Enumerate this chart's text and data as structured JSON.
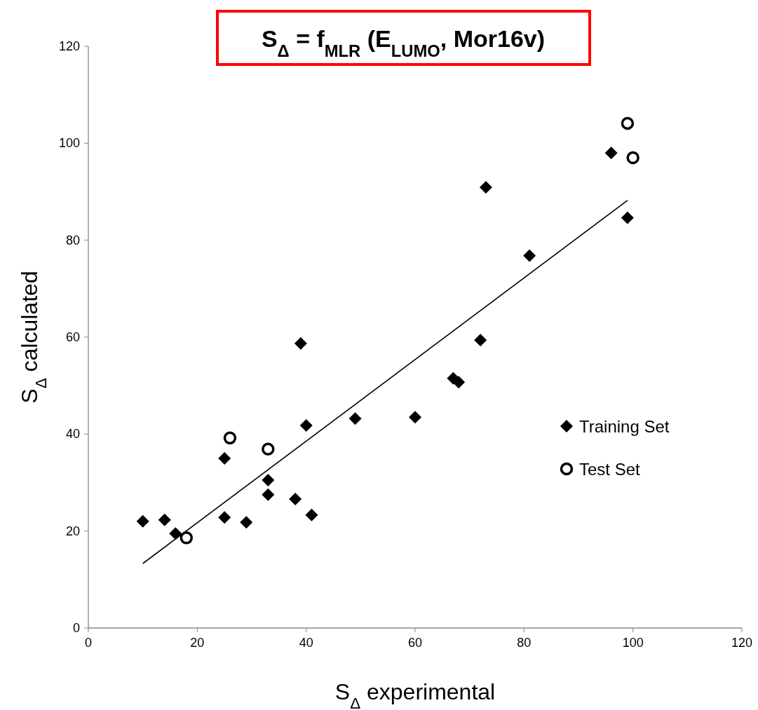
{
  "chart_data": {
    "type": "scatter",
    "title": "S$_{Δ}$ = f$_{MLR}$ (E$_{LUMO}$, Mor16v)",
    "xlabel": "S$_{Δ}$ experimental",
    "ylabel": "S$_{Δ}$ calculated",
    "xlim": [
      0,
      120
    ],
    "ylim": [
      0,
      120
    ],
    "xticks": [
      0,
      20,
      40,
      60,
      80,
      100,
      120
    ],
    "yticks": [
      0,
      20,
      40,
      60,
      80,
      100,
      120
    ],
    "grid": false,
    "legend": "right",
    "series": [
      {
        "name": "Training Set",
        "marker": "diamond",
        "color": "#000000",
        "x": [
          10,
          14,
          16,
          25,
          25,
          29,
          33,
          33,
          38,
          39,
          40,
          41,
          49,
          60,
          67,
          68,
          72,
          73,
          81,
          96,
          99
        ],
        "values": [
          22,
          22.3,
          19.5,
          35,
          22.8,
          21.8,
          30.5,
          27.5,
          26.6,
          58.7,
          41.8,
          23.3,
          43.2,
          43.5,
          51.5,
          50.7,
          59.4,
          90.9,
          76.8,
          98,
          84.6
        ]
      },
      {
        "name": "Test Set",
        "marker": "circle",
        "color": "#000000",
        "x": [
          18,
          26,
          33,
          99,
          100
        ],
        "values": [
          18.6,
          39.2,
          36.9,
          104.1,
          97
        ]
      },
      {
        "type": "line",
        "marker": "none",
        "line_style": "solid",
        "color": "#000000",
        "x": [
          10,
          99
        ],
        "values": [
          13.3,
          88.2
        ]
      }
    ]
  }
}
